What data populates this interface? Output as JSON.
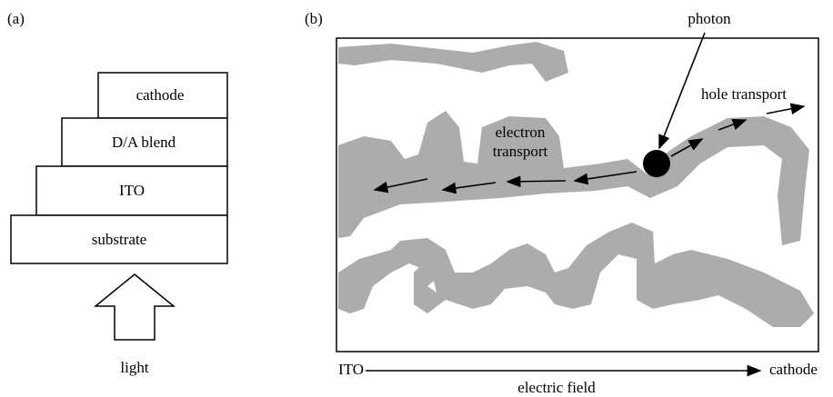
{
  "panel_a": {
    "label": "(a)",
    "layers": [
      "cathode",
      "D/A blend",
      "ITO",
      "substrate"
    ],
    "light": "light"
  },
  "panel_b": {
    "label": "(b)",
    "photon": "photon",
    "hole_transport": "hole transport",
    "electron_transport": [
      "electron",
      "transport"
    ],
    "axis": {
      "start": "ITO",
      "end": "cathode",
      "label": "electric field"
    }
  }
}
